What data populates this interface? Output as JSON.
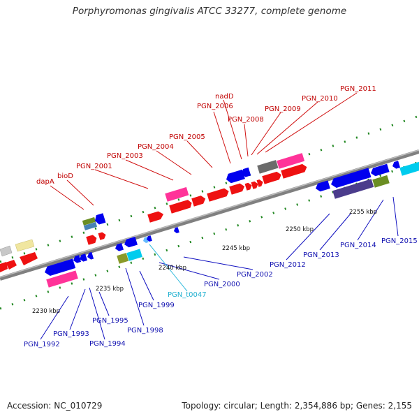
{
  "title": "Porphyromonas gingivalis ATCC 33277, complete genome",
  "footer": {
    "accession": "Accession: NC_010729",
    "summary": "Topology: circular; Length: 2,354,886 bp; Genes: 2,155"
  },
  "colors": {
    "forward_cds": "#ff0000",
    "reverse_cds": "#0000ee",
    "pink_feature": "#ff3399",
    "backbone": "#808080",
    "dotted_ring": "#228822",
    "top_label": "#c00000",
    "bottom_label": "#1010b0",
    "trna_label": "#20b0d0"
  },
  "ticks": [
    "2230 kbp",
    "2235 kbp",
    "2240 kbp",
    "2245 kbp",
    "2250 kbp",
    "2255 kbp"
  ],
  "top_labels": [
    "dapA",
    "bioD",
    "PGN_2001",
    "PGN_2003",
    "PGN_2004",
    "PGN_2005",
    "PGN_2006",
    "nadD",
    "PGN_2008",
    "PGN_2009",
    "PGN_2010",
    "PGN_2011"
  ],
  "bottom_labels": [
    "PGN_1992",
    "PGN_1993",
    "PGN_1994",
    "PGN_1995",
    "PGN_1998",
    "PGN_1999",
    "PGN_t0047",
    "PGN_2000",
    "PGN_2002",
    "PGN_2012",
    "PGN_2013",
    "PGN_2014",
    "PGN_2015"
  ]
}
